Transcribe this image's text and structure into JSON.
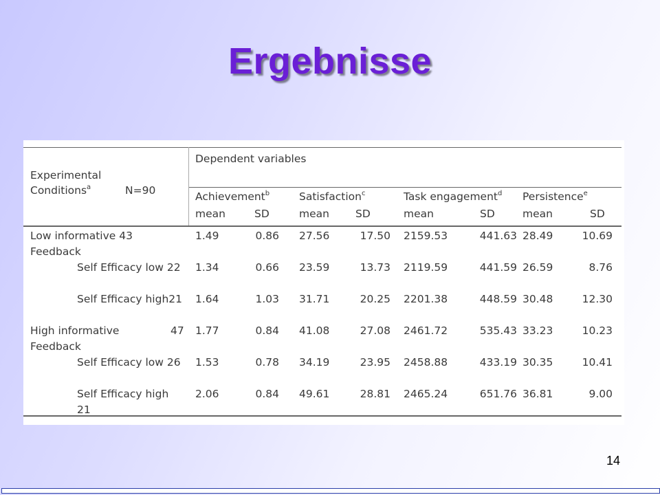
{
  "slide": {
    "title": "Ergebnisse",
    "page_number": "14"
  },
  "table": {
    "header": {
      "conditions_line1": "Experimental",
      "conditions_line2": "Conditions",
      "conditions_sup": "a",
      "n_label": "N=90",
      "dependent_variables": "Dependent variables",
      "achievement": "Achievement",
      "achievement_sup": "b",
      "satisfaction": "Satisfaction",
      "satisfaction_sup": "c",
      "task_engagement": "Task engagement",
      "task_engagement_sup": "d",
      "persistence": "Persistence",
      "persistence_sup": "e",
      "mean": "mean",
      "sd": "SD"
    },
    "rows": [
      {
        "label1": "Low informative 43",
        "label2": "Feedback",
        "values": [
          "1.49",
          "0.86",
          "27.56",
          "17.50",
          "2159.53",
          "441.63",
          "28.49",
          "10.69"
        ]
      },
      {
        "label1": "Self Efficacy low 22",
        "label2": "",
        "values": [
          "1.34",
          "0.66",
          "23.59",
          "13.73",
          "2119.59",
          "441.59",
          "26.59",
          "8.76"
        ]
      },
      {
        "label1": "Self Efficacy high21",
        "label2": "",
        "values": [
          "1.64",
          "1.03",
          "31.71",
          "20.25",
          "2201.38",
          "448.59",
          "30.48",
          "12.30"
        ]
      },
      {
        "label1": "High informative",
        "label1_n": "47",
        "label2": "Feedback",
        "values": [
          "1.77",
          "0.84",
          "41.08",
          "27.08",
          "2461.72",
          "535.43",
          "33.23",
          "10.23"
        ]
      },
      {
        "label1": "Self Efficacy low 26",
        "label2": "",
        "values": [
          "1.53",
          "0.78",
          "34.19",
          "23.95",
          "2458.88",
          "433.19",
          "30.35",
          "10.41"
        ]
      },
      {
        "label1": "Self Efficacy high",
        "label2": "21",
        "values": [
          "2.06",
          "0.84",
          "49.61",
          "28.81",
          "2465.24",
          "651.76",
          "36.81",
          "9.00"
        ]
      }
    ]
  }
}
